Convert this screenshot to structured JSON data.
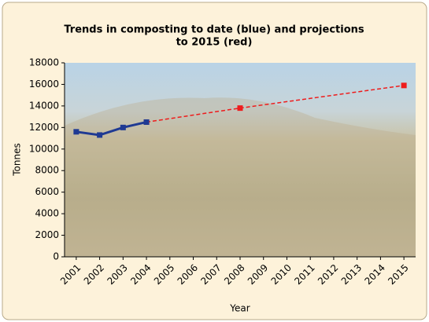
{
  "chart_data": {
    "type": "line",
    "title": [
      "Trends in composting to date (blue) and projections",
      "to 2015 (red)"
    ],
    "x_label": "Year",
    "y_label": "Tonnes",
    "xlim": [
      2000.5,
      2015.5
    ],
    "xticks": [
      2001,
      2002,
      2003,
      2004,
      2005,
      2006,
      2007,
      2008,
      2009,
      2010,
      2011,
      2012,
      2013,
      2014,
      2015
    ],
    "ylim": [
      0,
      18000
    ],
    "yticks": [
      0,
      2000,
      4000,
      6000,
      8000,
      10000,
      12000,
      14000,
      16000,
      18000
    ],
    "series": [
      {
        "color": "#ee1c1c",
        "dashed": true,
        "x": [
          2004,
          2008,
          2015
        ],
        "values": [
          12500,
          13800,
          15900
        ]
      },
      {
        "color": "#1f3a93",
        "dashed": false,
        "x": [
          2001,
          2002,
          2003,
          2004
        ],
        "values": [
          11600,
          11300,
          12000,
          12500
        ]
      }
    ]
  }
}
